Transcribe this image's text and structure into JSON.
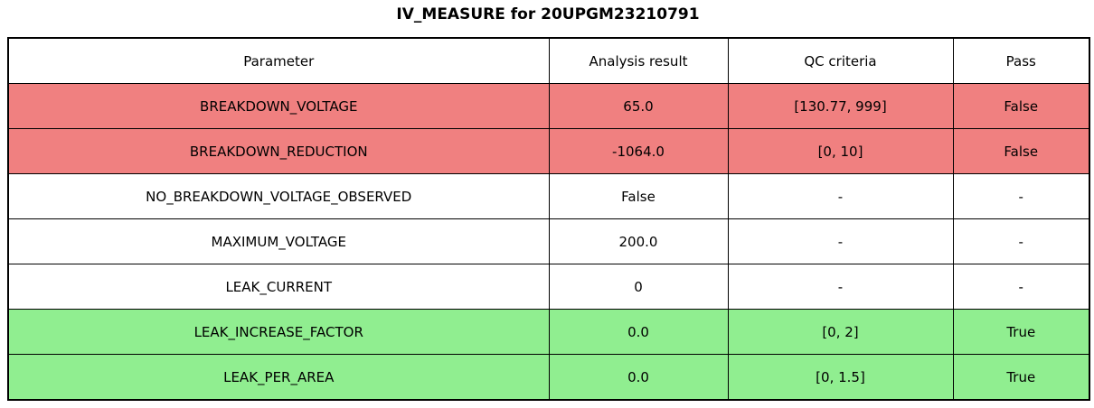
{
  "title": "IV_MEASURE for 20UPGM23210791",
  "colors": {
    "fail_row": "#F08080",
    "pass_row": "#90EE90",
    "neutral_row": "#FFFFFF",
    "border": "#000000",
    "text": "#000000",
    "background": "#FFFFFF"
  },
  "table": {
    "headers": [
      "Parameter",
      "Analysis result",
      "QC criteria",
      "Pass"
    ],
    "rows": [
      {
        "parameter": "BREAKDOWN_VOLTAGE",
        "analysis_result": "65.0",
        "qc_criteria": "[130.77, 999]",
        "pass": "False",
        "status": "fail"
      },
      {
        "parameter": "BREAKDOWN_REDUCTION",
        "analysis_result": "-1064.0",
        "qc_criteria": "[0, 10]",
        "pass": "False",
        "status": "fail"
      },
      {
        "parameter": "NO_BREAKDOWN_VOLTAGE_OBSERVED",
        "analysis_result": "False",
        "qc_criteria": "-",
        "pass": "-",
        "status": "neutral"
      },
      {
        "parameter": "MAXIMUM_VOLTAGE",
        "analysis_result": "200.0",
        "qc_criteria": "-",
        "pass": "-",
        "status": "neutral"
      },
      {
        "parameter": "LEAK_CURRENT",
        "analysis_result": "0",
        "qc_criteria": "-",
        "pass": "-",
        "status": "neutral"
      },
      {
        "parameter": "LEAK_INCREASE_FACTOR",
        "analysis_result": "0.0",
        "qc_criteria": "[0, 2]",
        "pass": "True",
        "status": "pass"
      },
      {
        "parameter": "LEAK_PER_AREA",
        "analysis_result": "0.0",
        "qc_criteria": "[0, 1.5]",
        "pass": "True",
        "status": "pass"
      }
    ]
  },
  "chart_data": {
    "type": "table",
    "title": "IV_MEASURE for 20UPGM23210791",
    "columns": [
      "Parameter",
      "Analysis result",
      "QC criteria",
      "Pass"
    ],
    "rows": [
      [
        "BREAKDOWN_VOLTAGE",
        "65.0",
        "[130.77, 999]",
        "False"
      ],
      [
        "BREAKDOWN_REDUCTION",
        "-1064.0",
        "[0, 10]",
        "False"
      ],
      [
        "NO_BREAKDOWN_VOLTAGE_OBSERVED",
        "False",
        "-",
        "-"
      ],
      [
        "MAXIMUM_VOLTAGE",
        "200.0",
        "-",
        "-"
      ],
      [
        "LEAK_CURRENT",
        "0",
        "-",
        "-"
      ],
      [
        "LEAK_INCREASE_FACTOR",
        "0.0",
        "[0, 2]",
        "True"
      ],
      [
        "LEAK_PER_AREA",
        "0.0",
        "[0, 1.5]",
        "True"
      ]
    ],
    "row_status": [
      "fail",
      "fail",
      "neutral",
      "neutral",
      "neutral",
      "pass",
      "pass"
    ],
    "layout": {
      "row_color_fail": "#F08080",
      "row_color_pass": "#90EE90",
      "row_color_neutral": "#FFFFFF",
      "grid": true,
      "header_background": "#FFFFFF"
    }
  }
}
